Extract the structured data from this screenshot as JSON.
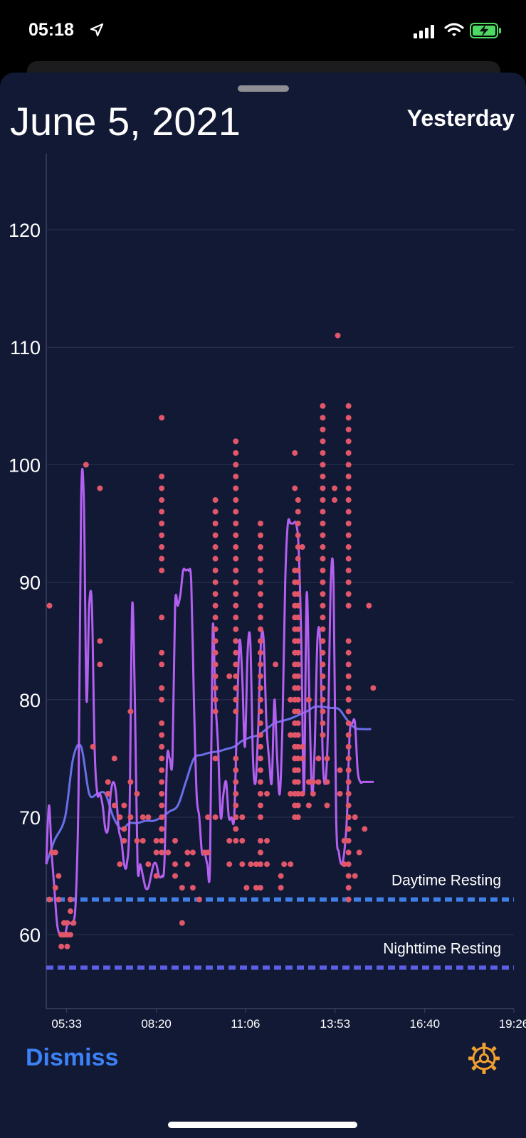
{
  "status_bar": {
    "time": "05:18",
    "icons": [
      "location-arrow-icon",
      "cellular-signal-icon",
      "wifi-icon",
      "battery-charging-icon"
    ]
  },
  "header": {
    "date": "June 5, 2021",
    "nav_label": "Yesterday"
  },
  "footer": {
    "dismiss_label": "Dismiss",
    "settings_icon": "gear-icon"
  },
  "colors": {
    "background": "#111935",
    "points": "#e2566a",
    "fine_line": "#b360f0",
    "smooth_line": "#6a6fe8",
    "daytime_resting": "#3f7fe6",
    "nighttime_resting": "#5c5ee6",
    "accent": "#3b82f6",
    "gear": "#f0a030"
  },
  "chart_data": {
    "type": "scatter",
    "title": "",
    "xlabel": "",
    "ylabel": "",
    "ylim": [
      54,
      126
    ],
    "xlim": [
      "04:55",
      "19:26"
    ],
    "y_ticks": [
      "60",
      "70",
      "80",
      "90",
      "100",
      "110",
      "120"
    ],
    "x_ticks": [
      "05:33",
      "08:20",
      "11:06",
      "13:53",
      "16:40",
      "19:26"
    ],
    "grid": true,
    "reference_lines": [
      {
        "label": "Daytime Resting",
        "value": 63
      },
      {
        "label": "Nighttime Resting",
        "value": 57.2
      }
    ],
    "point_groups": [
      {
        "x": "05:01",
        "y": [
          63,
          88
        ]
      },
      {
        "x": "05:06",
        "y": [
          67
        ]
      },
      {
        "x": "05:12",
        "y": [
          64,
          67
        ]
      },
      {
        "x": "05:18",
        "y": [
          63,
          65
        ]
      },
      {
        "x": "05:23",
        "y": [
          59,
          60
        ]
      },
      {
        "x": "05:28",
        "y": [
          60,
          61
        ]
      },
      {
        "x": "05:34",
        "y": [
          59,
          60,
          61
        ]
      },
      {
        "x": "05:40",
        "y": [
          60,
          62,
          63
        ]
      },
      {
        "x": "05:46",
        "y": [
          61
        ]
      },
      {
        "x": "06:09",
        "y": [
          100
        ]
      },
      {
        "x": "06:22",
        "y": [
          76
        ]
      },
      {
        "x": "06:35",
        "y": [
          98,
          85,
          83
        ]
      },
      {
        "x": "06:50",
        "y": [
          72,
          73
        ]
      },
      {
        "x": "07:02",
        "y": [
          75,
          71
        ]
      },
      {
        "x": "07:12",
        "y": [
          66,
          70
        ]
      },
      {
        "x": "07:20",
        "y": [
          68,
          69,
          71
        ]
      },
      {
        "x": "07:32",
        "y": [
          70,
          73,
          79
        ]
      },
      {
        "x": "07:44",
        "y": [
          72,
          68
        ]
      },
      {
        "x": "07:55",
        "y": [
          68,
          70
        ]
      },
      {
        "x": "08:05",
        "y": [
          70,
          66
        ]
      },
      {
        "x": "08:20",
        "y": [
          65,
          67,
          68
        ]
      },
      {
        "x": "08:30",
        "y": [
          104,
          99,
          98,
          97,
          96,
          95,
          94,
          93,
          92,
          91,
          87,
          84,
          83,
          81,
          80,
          78,
          77,
          76,
          75,
          74,
          73,
          72,
          71,
          70,
          69,
          68,
          67
        ]
      },
      {
        "x": "08:42",
        "y": [
          67
        ]
      },
      {
        "x": "08:55",
        "y": [
          66,
          68,
          65
        ]
      },
      {
        "x": "09:08",
        "y": [
          64,
          61
        ]
      },
      {
        "x": "09:18",
        "y": [
          67,
          66
        ]
      },
      {
        "x": "09:28",
        "y": [
          67,
          64
        ]
      },
      {
        "x": "09:40",
        "y": [
          63
        ]
      },
      {
        "x": "09:50",
        "y": [
          67
        ]
      },
      {
        "x": "09:56",
        "y": [
          70,
          67
        ]
      },
      {
        "x": "10:10",
        "y": [
          97,
          96,
          95,
          94,
          93,
          92,
          91,
          90,
          89,
          88,
          87,
          86,
          85,
          84,
          83,
          82,
          81,
          80,
          79,
          70,
          75
        ]
      },
      {
        "x": "10:36",
        "y": [
          82,
          68,
          66
        ]
      },
      {
        "x": "10:48",
        "y": [
          102,
          101,
          100,
          99,
          98,
          97,
          96,
          95,
          94,
          93,
          92,
          91,
          90,
          89,
          88,
          87,
          86,
          85,
          84,
          83,
          82,
          81,
          80,
          79,
          75,
          74,
          73,
          72,
          71,
          70,
          69,
          68
        ]
      },
      {
        "x": "11:00",
        "y": [
          70,
          68,
          66
        ]
      },
      {
        "x": "11:08",
        "y": [
          64
        ]
      },
      {
        "x": "11:16",
        "y": [
          66
        ]
      },
      {
        "x": "11:26",
        "y": [
          66,
          64
        ]
      },
      {
        "x": "11:34",
        "y": [
          95,
          94,
          93,
          92,
          91,
          90,
          89,
          88,
          87,
          86,
          85,
          84,
          83,
          82,
          81,
          80,
          79,
          78,
          77,
          76,
          75,
          74,
          73,
          72,
          71,
          70,
          68,
          67,
          66,
          64
        ]
      },
      {
        "x": "11:46",
        "y": [
          72,
          68,
          66
        ]
      },
      {
        "x": "12:02",
        "y": [
          83
        ]
      },
      {
        "x": "12:12",
        "y": [
          65,
          64
        ]
      },
      {
        "x": "12:18",
        "y": [
          66
        ]
      },
      {
        "x": "12:30",
        "y": [
          80,
          77,
          72,
          66
        ]
      },
      {
        "x": "12:38",
        "y": [
          101,
          98,
          91,
          90,
          89,
          88,
          87,
          86,
          85,
          84,
          83,
          82,
          81,
          80,
          79,
          78,
          77,
          76,
          75,
          74,
          73,
          72,
          71,
          70
        ]
      },
      {
        "x": "12:44",
        "y": [
          97,
          96,
          95,
          94,
          93,
          92,
          91,
          90,
          89,
          88,
          87,
          86,
          85,
          84,
          83,
          82,
          81,
          80,
          79,
          78,
          77,
          76,
          75,
          74,
          73,
          72,
          71,
          70
        ]
      },
      {
        "x": "12:52",
        "y": [
          93,
          76,
          75,
          72
        ]
      },
      {
        "x": "13:04",
        "y": [
          80,
          73,
          71
        ]
      },
      {
        "x": "13:12",
        "y": [
          73,
          72
        ]
      },
      {
        "x": "13:22",
        "y": [
          75,
          73
        ]
      },
      {
        "x": "13:30",
        "y": [
          105,
          104,
          103,
          102,
          101,
          100,
          99,
          98,
          97,
          96,
          95,
          94,
          93,
          92,
          91,
          90,
          89,
          88,
          87,
          86,
          85,
          84,
          83,
          82,
          81,
          80,
          79,
          78,
          77
        ]
      },
      {
        "x": "13:38",
        "y": [
          75,
          73,
          71
        ]
      },
      {
        "x": "13:52",
        "y": [
          98,
          97
        ]
      },
      {
        "x": "13:58",
        "y": [
          111
        ]
      },
      {
        "x": "14:02",
        "y": [
          74,
          72
        ]
      },
      {
        "x": "14:10",
        "y": [
          68,
          66
        ]
      },
      {
        "x": "14:18",
        "y": [
          105,
          104,
          103,
          102,
          101,
          100,
          99,
          98,
          97,
          96,
          95,
          94,
          93,
          92,
          91,
          90,
          89,
          88,
          85,
          84,
          83,
          82,
          81,
          80,
          79,
          78,
          77,
          76,
          75,
          74,
          73,
          72,
          71,
          70,
          69,
          68,
          67,
          66,
          65,
          64,
          63
        ]
      },
      {
        "x": "14:30",
        "y": [
          70,
          65
        ]
      },
      {
        "x": "14:38",
        "y": [
          67
        ]
      },
      {
        "x": "14:48",
        "y": [
          69
        ]
      },
      {
        "x": "14:56",
        "y": [
          88
        ]
      },
      {
        "x": "15:04",
        "y": [
          81
        ]
      }
    ],
    "series": [
      {
        "x": [
          "04:55",
          "05:00",
          "05:05",
          "05:10",
          "05:15",
          "05:20",
          "05:25",
          "05:30",
          "05:35",
          "05:40",
          "05:45",
          "05:50",
          "05:55",
          "06:00",
          "06:05",
          "06:10",
          "06:15",
          "06:20",
          "06:25",
          "06:30",
          "06:35",
          "06:40",
          "06:45",
          "06:50",
          "06:55",
          "07:00",
          "07:05",
          "07:10",
          "07:15",
          "07:20",
          "07:25",
          "07:30",
          "07:35",
          "07:40",
          "07:45",
          "07:50",
          "07:55",
          "08:00",
          "08:05",
          "08:10",
          "08:15",
          "08:20",
          "08:25",
          "08:30",
          "08:35",
          "08:40",
          "08:45",
          "08:50",
          "08:55",
          "09:00",
          "09:05",
          "09:10",
          "09:15",
          "09:20",
          "09:25",
          "09:30",
          "09:35",
          "09:40",
          "09:45",
          "09:50",
          "09:55",
          "10:00",
          "10:05",
          "10:10",
          "10:15",
          "10:20",
          "10:25",
          "10:30",
          "10:35",
          "10:40",
          "10:45",
          "10:50",
          "10:55",
          "11:00",
          "11:05",
          "11:10",
          "11:15",
          "11:20",
          "11:25",
          "11:30",
          "11:35",
          "11:40",
          "11:45",
          "11:50",
          "11:55",
          "12:00",
          "12:05",
          "12:10",
          "12:15",
          "12:20",
          "12:25",
          "12:30",
          "12:35",
          "12:40",
          "12:45",
          "12:50",
          "12:55",
          "13:00",
          "13:05",
          "13:10",
          "13:15",
          "13:20",
          "13:25",
          "13:30",
          "13:35",
          "13:40",
          "13:45",
          "13:50",
          "13:55",
          "14:00",
          "14:05",
          "14:10",
          "14:15",
          "14:20",
          "14:25",
          "14:30",
          "14:35",
          "14:40",
          "14:45",
          "14:50",
          "14:55",
          "15:00",
          "15:05"
        ],
        "y": [
          66,
          71,
          67,
          64,
          61,
          60,
          60,
          60,
          61,
          61,
          61,
          63,
          72,
          97,
          97,
          80,
          88,
          88,
          76,
          72,
          72,
          71,
          69,
          69,
          72,
          73,
          72,
          69,
          68,
          66,
          66,
          70,
          88,
          80,
          66,
          66,
          65,
          64,
          64,
          65,
          66,
          66,
          65,
          65,
          66,
          75,
          75,
          75,
          88,
          88,
          89,
          91,
          91,
          91,
          90,
          80,
          72,
          70,
          67,
          67,
          66,
          66,
          86,
          80,
          76,
          70,
          72,
          73,
          70,
          70,
          70,
          78,
          85,
          82,
          76,
          84,
          85,
          75,
          73,
          78,
          85,
          85,
          78,
          75,
          73,
          80,
          75,
          72,
          78,
          90,
          95,
          95,
          95,
          95,
          93,
          85,
          72,
          89,
          80,
          72,
          76,
          85,
          85,
          75,
          73,
          78,
          90,
          90,
          70,
          67,
          66,
          67,
          70,
          77,
          78,
          78,
          74,
          73,
          73,
          73,
          73,
          73,
          73
        ]
      },
      {
        "x": [
          "04:55",
          "05:10",
          "05:30",
          "05:45",
          "06:00",
          "06:15",
          "06:30",
          "06:45",
          "07:00",
          "07:15",
          "07:30",
          "07:45",
          "08:00",
          "08:15",
          "08:30",
          "08:45",
          "09:00",
          "09:15",
          "09:30",
          "09:45",
          "10:00",
          "10:15",
          "10:30",
          "10:45",
          "11:00",
          "11:15",
          "11:30",
          "11:45",
          "12:00",
          "12:15",
          "12:30",
          "12:45",
          "13:00",
          "13:15",
          "13:30",
          "13:45",
          "14:00",
          "14:15",
          "14:30",
          "14:45",
          "15:00"
        ],
        "y": [
          66,
          68,
          70,
          75,
          76,
          72,
          72,
          72,
          70,
          69,
          69.5,
          69.5,
          69.7,
          69.7,
          70,
          70.5,
          71,
          73,
          75,
          75.3,
          75.5,
          75.6,
          75.8,
          76,
          76.5,
          76.8,
          77,
          77.5,
          78,
          78.2,
          78.4,
          78.7,
          79,
          79.4,
          79.4,
          79.3,
          79.2,
          78.3,
          77.6,
          77.5,
          77.5
        ]
      }
    ]
  }
}
